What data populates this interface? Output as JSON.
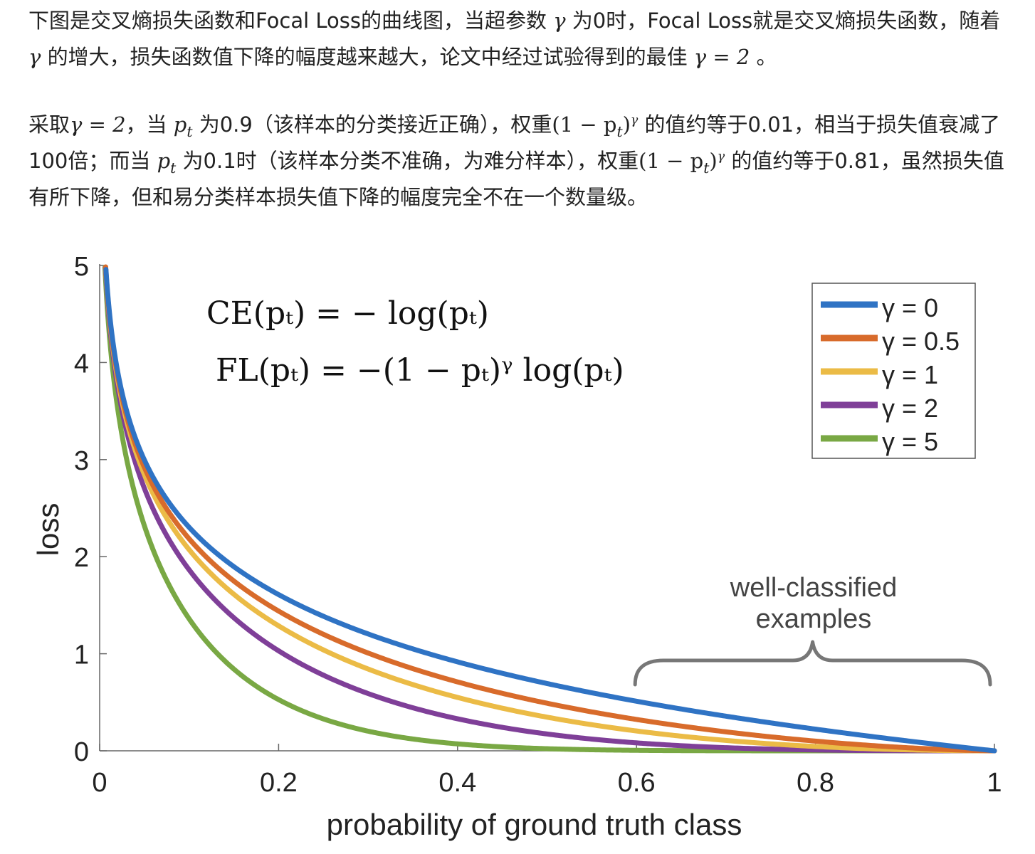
{
  "text": {
    "p1_a": "下图是交叉熵损失函数和Focal Loss的曲线图，当超参数",
    "p1_gamma": "γ",
    "p1_b": "为0时，Focal Loss就是交叉熵损失函数，随着",
    "p1_c": "的增大，损失函数值下降的幅度越来越大，论文中经过试验得到的最佳",
    "p1_eq": "γ = 2",
    "p1_end": "。",
    "p2_a": "采取",
    "p2_eq": "γ = 2",
    "p2_b": "，当",
    "p2_pt": "p",
    "p2_t": "t",
    "p2_c": "为0.9（该样本的分类接近正确），权重",
    "p2_w1": "(1 − p",
    "p2_w2": ")",
    "p2_d": "的值约等于0.01，相当于损失值衰减了100倍；而当",
    "p2_e": "为0.1时（该样本分类不准确，为难分样本），权重",
    "p2_f": "的值约等于0.81，虽然损失值有所下降，但和易分类样本损失值下降的幅度完全不在一个数量级。"
  },
  "chart_data": {
    "type": "line",
    "xlabel": "probability of ground truth class",
    "ylabel": "loss",
    "xlim": [
      0,
      1
    ],
    "ylim": [
      0,
      5
    ],
    "xticks": [
      0,
      0.2,
      0.4,
      0.6,
      0.8,
      1
    ],
    "xtick_labels": [
      "0",
      "0.2",
      "0.4",
      "0.6",
      "0.8",
      "1"
    ],
    "yticks": [
      0,
      1,
      2,
      3,
      4,
      5
    ],
    "ytick_labels": [
      "0",
      "1",
      "2",
      "3",
      "4",
      "5"
    ],
    "grid": false,
    "legend_position": "top-right",
    "function": "FL(p) = -(1-p)^gamma * log(p)",
    "series": [
      {
        "name": "γ = 0",
        "gamma": 0,
        "color": "#2f73c4"
      },
      {
        "name": "γ = 0.5",
        "gamma": 0.5,
        "color": "#d86b2b"
      },
      {
        "name": "γ = 1",
        "gamma": 1,
        "color": "#ebbb46"
      },
      {
        "name": "γ = 2",
        "gamma": 2,
        "color": "#7f3f98"
      },
      {
        "name": "γ = 5",
        "gamma": 5,
        "color": "#79a844"
      }
    ],
    "formula_ce": "CE(pₜ) = − log(pₜ)",
    "formula_fl": "FL(pₜ) = −(1 − pₜ)ᵞ log(pₜ)",
    "annotation_line1": "well-classified",
    "annotation_line2": "examples",
    "annotation_range": [
      0.6,
      1
    ]
  }
}
